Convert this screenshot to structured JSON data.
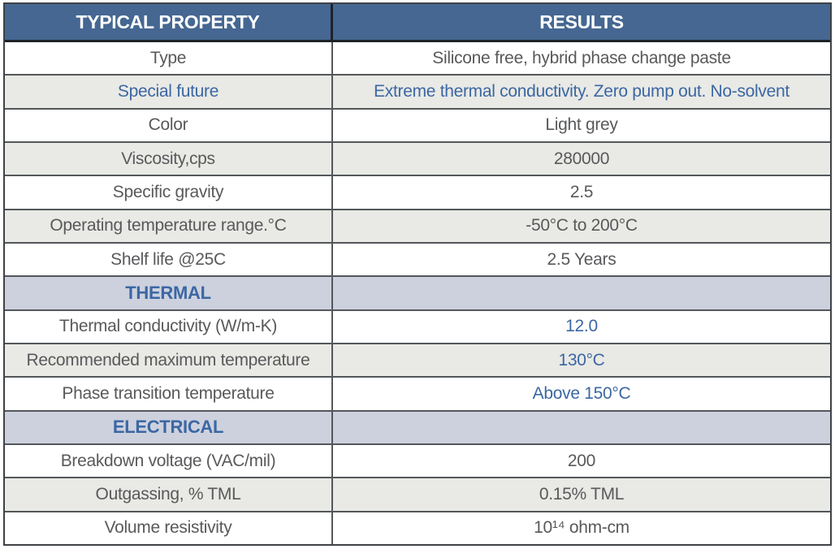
{
  "colors": {
    "header_bg": "#456792",
    "header_text": "#ffffff",
    "section_bg": "#cdd1de",
    "accent_blue": "#3b67a3",
    "row_grey": "#e9e9e5",
    "row_white": "#ffffff",
    "text_dark": "#58595b",
    "border": "#53575a",
    "header_border": "#1f2229"
  },
  "table": {
    "columns": [
      "TYPICAL PROPERTY",
      "RESULTS"
    ],
    "rows": [
      {
        "property": "Type",
        "result": "Silicone free, hybrid phase change paste",
        "row_style": "white",
        "label_style": "",
        "value_style": ""
      },
      {
        "property": "Special future",
        "result": "Extreme thermal conductivity. Zero pump out.  No-solvent",
        "row_style": "grey",
        "label_style": "blue",
        "value_style": "blue"
      },
      {
        "property": "Color",
        "result": "Light grey",
        "row_style": "white",
        "label_style": "",
        "value_style": ""
      },
      {
        "property": "Viscosity,cps",
        "result": "280000",
        "row_style": "grey",
        "label_style": "",
        "value_style": ""
      },
      {
        "property": "Specific gravity",
        "result": "2.5",
        "row_style": "white",
        "label_style": "",
        "value_style": ""
      },
      {
        "property": "Operating temperature range.°C",
        "result": "-50°C  to 200°C",
        "row_style": "grey",
        "label_style": "",
        "value_style": ""
      },
      {
        "property": "Shelf life @25C",
        "result": "2.5 Years",
        "row_style": "white",
        "label_style": "",
        "value_style": ""
      },
      {
        "property": "THERMAL",
        "result": "",
        "row_style": "section",
        "label_style": "",
        "value_style": ""
      },
      {
        "property": "Thermal conductivity (W/m-K)",
        "result": "12.0",
        "row_style": "white",
        "label_style": "",
        "value_style": "blue"
      },
      {
        "property": "Recommended maximum temperature",
        "result": "130°C",
        "row_style": "grey",
        "label_style": "",
        "value_style": "blue"
      },
      {
        "property": "Phase transition temperature",
        "result": "Above 150°C",
        "row_style": "white",
        "label_style": "",
        "value_style": "blue"
      },
      {
        "property": "ELECTRICAL",
        "result": "",
        "row_style": "section",
        "label_style": "",
        "value_style": ""
      },
      {
        "property": "Breakdown voltage  (VAC/mil)",
        "result": "200",
        "row_style": "white",
        "label_style": "",
        "value_style": ""
      },
      {
        "property": "Outgassing, % TML",
        "result": "0.15% TML",
        "row_style": "grey",
        "label_style": "",
        "value_style": ""
      },
      {
        "property": "Volume resistivity",
        "result": "10¹⁴ ohm-cm",
        "row_style": "white",
        "label_style": "",
        "value_style": ""
      }
    ]
  }
}
